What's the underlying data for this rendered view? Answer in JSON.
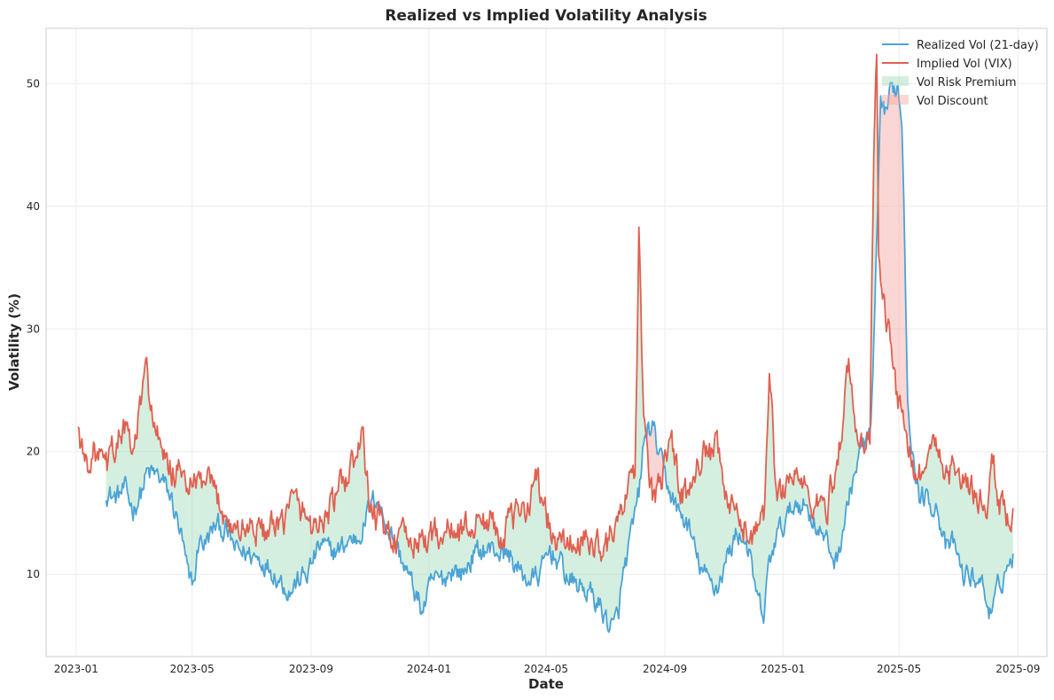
{
  "chart_data": {
    "type": "line",
    "title": "Realized vs Implied Volatility Analysis",
    "xlabel": "Date",
    "ylabel": "Volatility (%)",
    "x_range": [
      "2022-12-01",
      "2025-10-01"
    ],
    "ylim": [
      3.3,
      54.5
    ],
    "x_ticks": [
      {
        "date": "2023-01-01",
        "label": "2023-01"
      },
      {
        "date": "2023-05-01",
        "label": "2023-05"
      },
      {
        "date": "2023-09-01",
        "label": "2023-09"
      },
      {
        "date": "2024-01-01",
        "label": "2024-01"
      },
      {
        "date": "2024-05-01",
        "label": "2024-05"
      },
      {
        "date": "2024-09-01",
        "label": "2024-09"
      },
      {
        "date": "2025-01-01",
        "label": "2025-01"
      },
      {
        "date": "2025-05-01",
        "label": "2025-05"
      },
      {
        "date": "2025-09-01",
        "label": "2025-09"
      }
    ],
    "y_ticks": [
      10,
      20,
      30,
      40,
      50
    ],
    "grid": true,
    "legend_position": "top-right",
    "legend": [
      {
        "label": "Realized Vol (21-day)",
        "kind": "line",
        "color": "#4ba3d6"
      },
      {
        "label": "Implied Vol (VIX)",
        "kind": "line",
        "color": "#e06050"
      },
      {
        "label": "Vol Risk Premium",
        "kind": "fill",
        "color": "#9fdcb8"
      },
      {
        "label": "Vol Discount",
        "kind": "fill",
        "color": "#f3a6a0"
      }
    ],
    "series": [
      {
        "name": "Realized Vol (21-day)",
        "color": "#4ba3d6",
        "points": [
          [
            "2023-02-01",
            16.8
          ],
          [
            "2023-02-10",
            16.2
          ],
          [
            "2023-02-20",
            16.9
          ],
          [
            "2023-03-01",
            15.3
          ],
          [
            "2023-03-10",
            16.8
          ],
          [
            "2023-03-15",
            18.2
          ],
          [
            "2023-03-25",
            18.1
          ],
          [
            "2023-04-01",
            17.5
          ],
          [
            "2023-04-10",
            16.0
          ],
          [
            "2023-04-20",
            13.0
          ],
          [
            "2023-04-28",
            9.3
          ],
          [
            "2023-05-03",
            9.3
          ],
          [
            "2023-05-08",
            12.8
          ],
          [
            "2023-05-15",
            12.5
          ],
          [
            "2023-05-25",
            14.0
          ],
          [
            "2023-06-05",
            13.5
          ],
          [
            "2023-06-15",
            12.0
          ],
          [
            "2023-06-25",
            11.7
          ],
          [
            "2023-07-05",
            11.5
          ],
          [
            "2023-07-15",
            11.0
          ],
          [
            "2023-07-25",
            10.2
          ],
          [
            "2023-08-01",
            9.5
          ],
          [
            "2023-08-10",
            8.6
          ],
          [
            "2023-08-20",
            9.6
          ],
          [
            "2023-08-28",
            10.0
          ],
          [
            "2023-09-05",
            11.5
          ],
          [
            "2023-09-12",
            12.5
          ],
          [
            "2023-09-20",
            11.8
          ],
          [
            "2023-10-01",
            12.0
          ],
          [
            "2023-10-10",
            12.8
          ],
          [
            "2023-10-20",
            13.0
          ],
          [
            "2023-11-01",
            15.5
          ],
          [
            "2023-11-08",
            16.5
          ],
          [
            "2023-11-15",
            14.5
          ],
          [
            "2023-11-25",
            13.0
          ],
          [
            "2023-12-05",
            11.0
          ],
          [
            "2023-12-15",
            9.0
          ],
          [
            "2023-12-25",
            7.0
          ],
          [
            "2024-01-05",
            9.5
          ],
          [
            "2024-01-15",
            9.5
          ],
          [
            "2024-01-25",
            10.5
          ],
          [
            "2024-02-05",
            10.0
          ],
          [
            "2024-02-15",
            11.5
          ],
          [
            "2024-02-25",
            12.0
          ],
          [
            "2024-03-10",
            12.0
          ],
          [
            "2024-03-25",
            11.5
          ],
          [
            "2024-04-05",
            10.0
          ],
          [
            "2024-04-15",
            9.5
          ],
          [
            "2024-04-25",
            10.0
          ],
          [
            "2024-05-05",
            12.0
          ],
          [
            "2024-05-15",
            11.0
          ],
          [
            "2024-05-25",
            9.5
          ],
          [
            "2024-06-05",
            9.0
          ],
          [
            "2024-06-15",
            8.5
          ],
          [
            "2024-06-25",
            7.5
          ],
          [
            "2024-07-05",
            6.0
          ],
          [
            "2024-07-10",
            5.5
          ],
          [
            "2024-07-15",
            7.0
          ],
          [
            "2024-07-20",
            10.0
          ],
          [
            "2024-07-28",
            13.0
          ],
          [
            "2024-08-05",
            16.5
          ],
          [
            "2024-08-10",
            20.5
          ],
          [
            "2024-08-15",
            22.0
          ],
          [
            "2024-08-20",
            21.8
          ],
          [
            "2024-08-28",
            19.0
          ],
          [
            "2024-09-05",
            17.0
          ],
          [
            "2024-09-15",
            15.0
          ],
          [
            "2024-09-25",
            14.0
          ],
          [
            "2024-10-05",
            11.0
          ],
          [
            "2024-10-15",
            9.5
          ],
          [
            "2024-10-25",
            9.0
          ],
          [
            "2024-11-05",
            11.5
          ],
          [
            "2024-11-15",
            13.5
          ],
          [
            "2024-11-25",
            12.5
          ],
          [
            "2024-12-05",
            8.0
          ],
          [
            "2024-12-12",
            6.5
          ],
          [
            "2024-12-18",
            11.0
          ],
          [
            "2024-12-25",
            13.0
          ],
          [
            "2025-01-05",
            14.5
          ],
          [
            "2025-01-15",
            16.0
          ],
          [
            "2025-01-25",
            15.5
          ],
          [
            "2025-02-05",
            14.0
          ],
          [
            "2025-02-15",
            12.5
          ],
          [
            "2025-02-25",
            11.0
          ],
          [
            "2025-03-05",
            14.0
          ],
          [
            "2025-03-15",
            18.0
          ],
          [
            "2025-03-25",
            20.5
          ],
          [
            "2025-04-02",
            21.5
          ],
          [
            "2025-04-06",
            31.0
          ],
          [
            "2025-04-12",
            47.5
          ],
          [
            "2025-04-18",
            48.0
          ],
          [
            "2025-04-24",
            49.5
          ],
          [
            "2025-04-30",
            49.8
          ],
          [
            "2025-05-04",
            47.0
          ],
          [
            "2025-05-06",
            41.0
          ],
          [
            "2025-05-10",
            25.0
          ],
          [
            "2025-05-16",
            19.0
          ],
          [
            "2025-05-22",
            16.5
          ],
          [
            "2025-06-01",
            16.0
          ],
          [
            "2025-06-10",
            15.5
          ],
          [
            "2025-06-18",
            12.0
          ],
          [
            "2025-06-28",
            12.5
          ],
          [
            "2025-07-05",
            10.0
          ],
          [
            "2025-07-15",
            9.8
          ],
          [
            "2025-07-25",
            9.5
          ],
          [
            "2025-08-01",
            7.5
          ],
          [
            "2025-08-05",
            6.5
          ],
          [
            "2025-08-12",
            9.0
          ],
          [
            "2025-08-20",
            10.5
          ],
          [
            "2025-08-27",
            11.5
          ]
        ]
      },
      {
        "name": "Implied Vol (VIX)",
        "color": "#e06050",
        "points": [
          [
            "2023-01-03",
            22.0
          ],
          [
            "2023-01-10",
            19.0
          ],
          [
            "2023-01-20",
            20.0
          ],
          [
            "2023-02-01",
            18.5
          ],
          [
            "2023-02-10",
            20.5
          ],
          [
            "2023-02-20",
            22.0
          ],
          [
            "2023-03-01",
            19.5
          ],
          [
            "2023-03-10",
            24.5
          ],
          [
            "2023-03-15",
            26.5
          ],
          [
            "2023-03-20",
            23.5
          ],
          [
            "2023-04-01",
            19.0
          ],
          [
            "2023-04-10",
            18.5
          ],
          [
            "2023-04-20",
            18.0
          ],
          [
            "2023-05-01",
            17.0
          ],
          [
            "2023-05-10",
            17.5
          ],
          [
            "2023-05-20",
            17.0
          ],
          [
            "2023-06-01",
            15.5
          ],
          [
            "2023-06-10",
            14.0
          ],
          [
            "2023-06-20",
            13.5
          ],
          [
            "2023-07-01",
            14.0
          ],
          [
            "2023-07-15",
            13.5
          ],
          [
            "2023-08-01",
            13.5
          ],
          [
            "2023-08-10",
            16.0
          ],
          [
            "2023-08-20",
            15.5
          ],
          [
            "2023-09-01",
            14.0
          ],
          [
            "2023-09-15",
            14.5
          ],
          [
            "2023-09-25",
            16.0
          ],
          [
            "2023-10-05",
            17.5
          ],
          [
            "2023-10-15",
            19.0
          ],
          [
            "2023-10-25",
            21.0
          ],
          [
            "2023-11-01",
            15.0
          ],
          [
            "2023-11-10",
            14.5
          ],
          [
            "2023-11-20",
            13.5
          ],
          [
            "2023-12-01",
            12.8
          ],
          [
            "2023-12-15",
            12.5
          ],
          [
            "2024-01-01",
            13.0
          ],
          [
            "2024-01-15",
            13.5
          ],
          [
            "2024-02-01",
            13.5
          ],
          [
            "2024-02-15",
            14.0
          ],
          [
            "2024-03-01",
            14.5
          ],
          [
            "2024-03-15",
            13.5
          ],
          [
            "2024-04-01",
            14.5
          ],
          [
            "2024-04-15",
            16.5
          ],
          [
            "2024-04-20",
            18.5
          ],
          [
            "2024-04-28",
            15.5
          ],
          [
            "2024-05-10",
            12.5
          ],
          [
            "2024-05-25",
            12.5
          ],
          [
            "2024-06-10",
            12.5
          ],
          [
            "2024-06-25",
            12.5
          ],
          [
            "2024-07-05",
            12.5
          ],
          [
            "2024-07-20",
            15.5
          ],
          [
            "2024-08-01",
            18.0
          ],
          [
            "2024-08-05",
            38.0
          ],
          [
            "2024-08-08",
            27.5
          ],
          [
            "2024-08-12",
            20.5
          ],
          [
            "2024-08-20",
            16.0
          ],
          [
            "2024-09-01",
            18.5
          ],
          [
            "2024-09-06",
            22.0
          ],
          [
            "2024-09-15",
            17.5
          ],
          [
            "2024-09-25",
            16.0
          ],
          [
            "2024-10-05",
            20.0
          ],
          [
            "2024-10-15",
            19.5
          ],
          [
            "2024-10-25",
            20.0
          ],
          [
            "2024-11-05",
            15.5
          ],
          [
            "2024-11-15",
            14.5
          ],
          [
            "2024-11-25",
            13.5
          ],
          [
            "2024-12-05",
            13.5
          ],
          [
            "2024-12-12",
            14.0
          ],
          [
            "2024-12-18",
            27.0
          ],
          [
            "2024-12-25",
            16.5
          ],
          [
            "2025-01-05",
            17.5
          ],
          [
            "2025-01-15",
            18.5
          ],
          [
            "2025-01-25",
            16.5
          ],
          [
            "2025-02-05",
            15.5
          ],
          [
            "2025-02-15",
            15.5
          ],
          [
            "2025-02-25",
            18.5
          ],
          [
            "2025-03-05",
            23.5
          ],
          [
            "2025-03-10",
            27.0
          ],
          [
            "2025-03-20",
            20.0
          ],
          [
            "2025-04-01",
            22.0
          ],
          [
            "2025-04-05",
            45.0
          ],
          [
            "2025-04-08",
            52.0
          ],
          [
            "2025-04-10",
            35.0
          ],
          [
            "2025-04-14",
            33.0
          ],
          [
            "2025-04-20",
            30.0
          ],
          [
            "2025-04-25",
            26.0
          ],
          [
            "2025-05-01",
            24.0
          ],
          [
            "2025-05-05",
            24.5
          ],
          [
            "2025-05-12",
            20.0
          ],
          [
            "2025-05-20",
            18.0
          ],
          [
            "2025-06-01",
            19.5
          ],
          [
            "2025-06-10",
            20.5
          ],
          [
            "2025-06-20",
            18.5
          ],
          [
            "2025-07-01",
            18.5
          ],
          [
            "2025-07-10",
            17.0
          ],
          [
            "2025-07-20",
            16.5
          ],
          [
            "2025-08-01",
            15.5
          ],
          [
            "2025-08-05",
            20.0
          ],
          [
            "2025-08-12",
            16.0
          ],
          [
            "2025-08-20",
            15.0
          ],
          [
            "2025-08-27",
            14.5
          ]
        ]
      }
    ]
  }
}
